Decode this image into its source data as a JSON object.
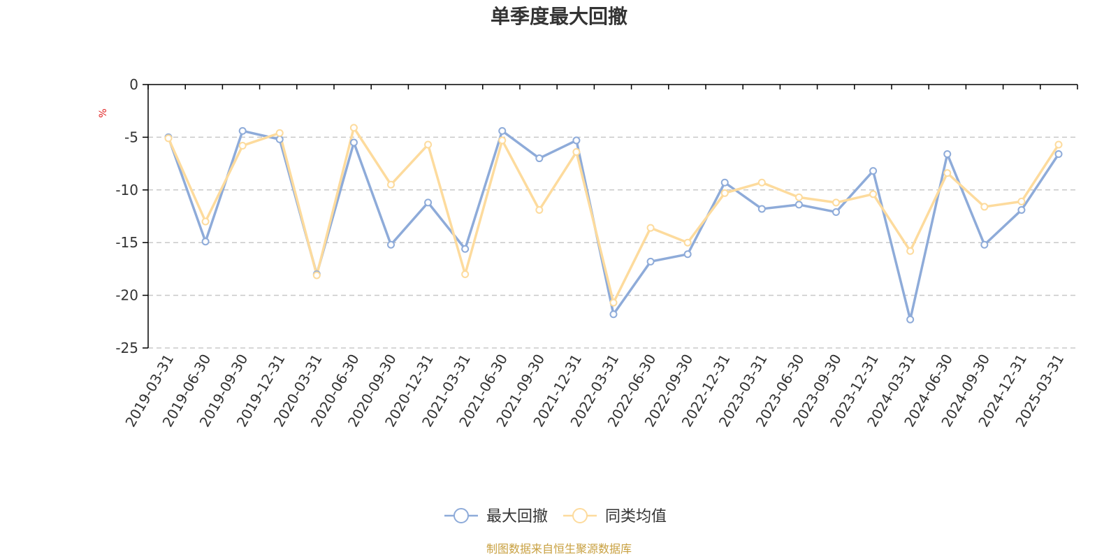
{
  "chart_data": {
    "type": "line",
    "title": "单季度最大回撤",
    "ylabel": "%",
    "ylim": [
      -25,
      0
    ],
    "yticks": [
      0,
      -5,
      -10,
      -15,
      -20,
      -25
    ],
    "grid": true,
    "legend_position": "bottom",
    "categories": [
      "2019-03-31",
      "2019-06-30",
      "2019-09-30",
      "2019-12-31",
      "2020-03-31",
      "2020-06-30",
      "2020-09-30",
      "2020-12-31",
      "2021-03-31",
      "2021-06-30",
      "2021-09-30",
      "2021-12-31",
      "2022-03-31",
      "2022-06-30",
      "2022-09-30",
      "2022-12-31",
      "2023-03-31",
      "2023-06-30",
      "2023-09-30",
      "2023-12-31",
      "2024-03-31",
      "2024-06-30",
      "2024-09-30",
      "2024-12-31",
      "2025-03-31"
    ],
    "series": [
      {
        "name": "最大回撤",
        "color": "#8eabd9",
        "values": [
          -5.0,
          -14.9,
          -4.4,
          -5.2,
          -18.0,
          -5.5,
          -15.2,
          -11.2,
          -15.6,
          -4.4,
          -7.0,
          -5.3,
          -21.8,
          -16.8,
          -16.1,
          -9.3,
          -11.8,
          -11.4,
          -12.1,
          -8.2,
          -22.3,
          -6.6,
          -15.2,
          -11.9,
          -6.6
        ]
      },
      {
        "name": "同类均值",
        "color": "#fddb9d",
        "values": [
          -5.1,
          -13.0,
          -5.8,
          -4.6,
          -18.1,
          -4.1,
          -9.5,
          -5.7,
          -18.0,
          -5.3,
          -11.9,
          -6.4,
          -20.7,
          -13.6,
          -15.0,
          -10.3,
          -9.3,
          -10.7,
          -11.2,
          -10.4,
          -15.8,
          -8.4,
          -11.6,
          -11.1,
          -5.7
        ]
      }
    ],
    "unit_color": "#e02020",
    "axis_color": "#000000",
    "grid_color": "#c8c8c8"
  },
  "footer": {
    "source_text": "制图数据来自恒生聚源数据库",
    "source_color": "#c8a040"
  }
}
